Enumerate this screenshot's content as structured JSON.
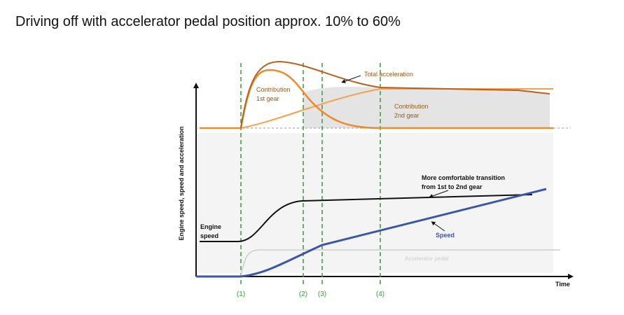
{
  "title": "Driving off with accelerator pedal position approx. 10% to 60%",
  "y_axis_label": "Engine speed, speed and acceleration",
  "x_axis_label": "Time",
  "labels": {
    "total_acceleration": "Total acceleration",
    "contribution_1st": [
      "Contribution",
      "1st gear"
    ],
    "contribution_2nd": [
      "Contribution",
      "2nd gear"
    ],
    "transition": [
      "More comfortable transition",
      "from 1st to 2nd gear"
    ],
    "engine_speed": [
      "Engine",
      "speed"
    ],
    "speed": "Speed",
    "accelerator_pedal": "Accelerator pedal"
  },
  "markers": [
    "(1)",
    "(2)",
    "(3)",
    "(4)"
  ]
}
